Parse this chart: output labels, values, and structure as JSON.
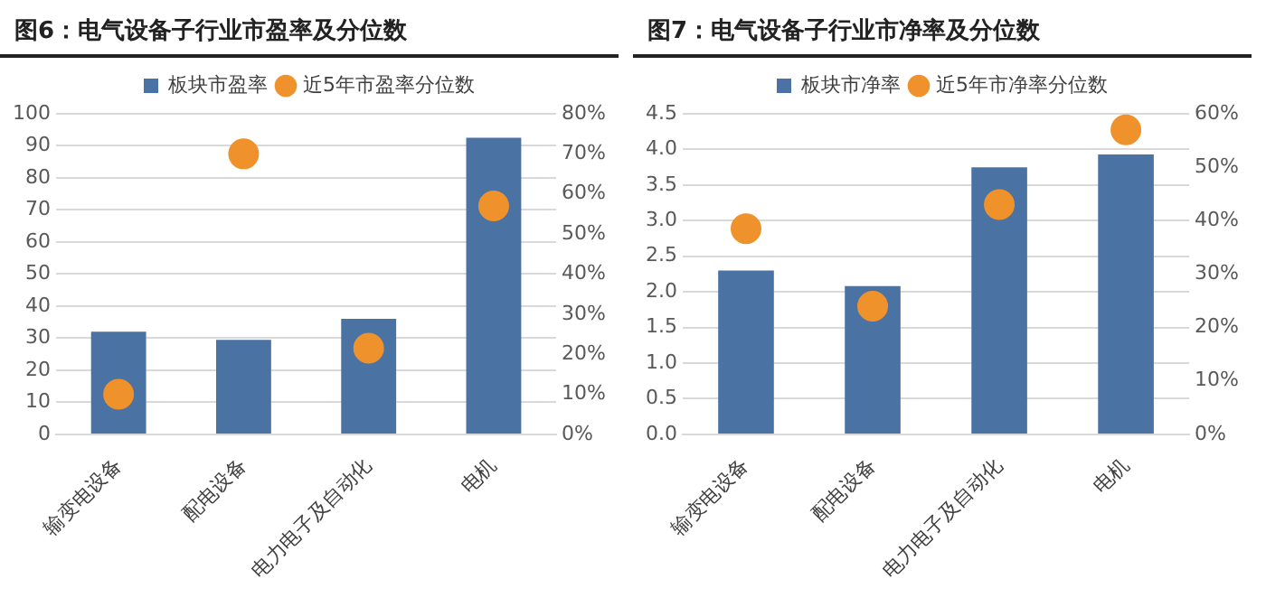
{
  "chart_data": [
    {
      "type": "bar",
      "title": "图6：电气设备子行业市盈率及分位数",
      "categories": [
        "输变电设备",
        "配电设备",
        "电力电子及自动化",
        "电机"
      ],
      "series": [
        {
          "name": "板块市盈率",
          "color": "#4a72a3",
          "values": [
            32,
            29.5,
            36,
            92.5
          ]
        },
        {
          "name": "近5年市盈率分位数",
          "type": "scatter",
          "axis": "y2",
          "marker": "circle",
          "color": "#f0922c",
          "values": [
            10,
            70,
            21.5,
            57
          ]
        }
      ],
      "ylim": [
        0,
        100
      ],
      "yticks": [
        0,
        10,
        20,
        30,
        40,
        50,
        60,
        70,
        80,
        90,
        100
      ],
      "y2lim": [
        0,
        80
      ],
      "y2ticks": [
        {
          "value": 0,
          "label": "0%"
        },
        {
          "value": 10,
          "label": "10%"
        },
        {
          "value": 20,
          "label": "20%"
        },
        {
          "value": 30,
          "label": "30%"
        },
        {
          "value": 40,
          "label": "40%"
        },
        {
          "value": 50,
          "label": "50%"
        },
        {
          "value": 60,
          "label": "60%"
        },
        {
          "value": 70,
          "label": "70%"
        },
        {
          "value": 80,
          "label": "80%"
        }
      ],
      "grid": "y",
      "legend": "top"
    },
    {
      "type": "bar",
      "title": "图7：电气设备子行业市净率及分位数",
      "categories": [
        "输变电设备",
        "配电设备",
        "电力电子及自动化",
        "电机"
      ],
      "series": [
        {
          "name": "板块市净率",
          "color": "#4a72a3",
          "values": [
            2.3,
            2.08,
            3.75,
            3.93
          ]
        },
        {
          "name": "近5年市净率分位数",
          "type": "scatter",
          "axis": "y2",
          "marker": "circle",
          "color": "#f0922c",
          "values": [
            38.5,
            24,
            43,
            57
          ]
        }
      ],
      "ylim": [
        0,
        4.5
      ],
      "yticks": [
        {
          "value": 0,
          "label": "0.0"
        },
        {
          "value": 0.5,
          "label": "0.5"
        },
        {
          "value": 1,
          "label": "1.0"
        },
        {
          "value": 1.5,
          "label": "1.5"
        },
        {
          "value": 2,
          "label": "2.0"
        },
        {
          "value": 2.5,
          "label": "2.5"
        },
        {
          "value": 3,
          "label": "3.0"
        },
        {
          "value": 3.5,
          "label": "3.5"
        },
        {
          "value": 4,
          "label": "4.0"
        },
        {
          "value": 4.5,
          "label": "4.5"
        }
      ],
      "y2lim": [
        0,
        60
      ],
      "y2ticks": [
        {
          "value": 0,
          "label": "0%"
        },
        {
          "value": 10,
          "label": "10%"
        },
        {
          "value": 20,
          "label": "20%"
        },
        {
          "value": 30,
          "label": "30%"
        },
        {
          "value": 40,
          "label": "40%"
        },
        {
          "value": 50,
          "label": "50%"
        },
        {
          "value": 60,
          "label": "60%"
        }
      ],
      "grid": "y",
      "legend": "top"
    }
  ]
}
